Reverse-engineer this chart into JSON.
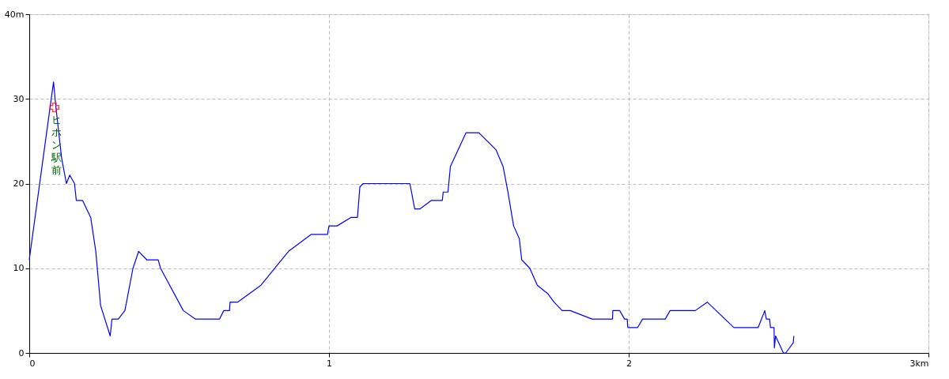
{
  "chart_data": {
    "type": "line",
    "x": [
      0,
      0.081,
      0.089,
      0.108,
      0.124,
      0.135,
      0.151,
      0.157,
      0.178,
      0.205,
      0.222,
      0.238,
      0.27,
      0.276,
      0.297,
      0.319,
      0.346,
      0.365,
      0.392,
      0.43,
      0.438,
      0.514,
      0.554,
      0.635,
      0.649,
      0.668,
      0.67,
      0.695,
      0.773,
      0.865,
      0.941,
      0.995,
      1.0,
      1.027,
      1.073,
      1.095,
      1.103,
      1.114,
      1.27,
      1.286,
      1.303,
      1.341,
      1.378,
      1.381,
      1.397,
      1.405,
      1.457,
      1.5,
      1.557,
      1.581,
      1.597,
      1.616,
      1.635,
      1.643,
      1.67,
      1.695,
      1.73,
      1.751,
      1.778,
      1.805,
      1.878,
      1.946,
      1.947,
      1.97,
      1.986,
      1.995,
      1.997,
      2.03,
      2.046,
      2.122,
      2.138,
      2.222,
      2.262,
      2.351,
      2.432,
      2.454,
      2.459,
      2.47,
      2.473,
      2.485,
      2.486,
      2.49,
      2.516,
      2.524,
      2.549,
      2.551
    ],
    "series": [
      {
        "color": "#0000ff",
        "values": [
          11,
          32,
          29,
          23,
          20,
          21,
          20,
          18,
          18,
          16,
          12,
          5.6,
          2,
          4,
          4,
          5,
          10,
          12,
          11,
          11,
          10,
          5,
          4,
          4,
          5,
          5,
          6,
          6,
          8,
          12,
          14,
          14,
          15,
          15,
          16,
          16,
          19.6,
          20,
          20,
          17,
          17,
          18,
          18,
          19,
          19,
          22,
          26,
          26,
          24,
          22,
          19,
          15,
          13.5,
          11,
          10,
          8,
          7,
          6,
          5,
          5,
          4,
          4,
          5,
          5,
          4,
          4,
          3,
          3,
          4,
          4,
          5,
          5,
          6,
          3,
          3,
          5,
          4,
          4,
          3,
          3,
          0.6,
          2,
          0,
          0,
          1.2,
          2
        ]
      }
    ],
    "xlim": [
      0,
      3
    ],
    "xticks": [
      0,
      1,
      2,
      {
        "value": 3,
        "label": "3km"
      }
    ],
    "ylim": [
      0,
      40
    ],
    "yticks": [
      0,
      10,
      20,
      30,
      {
        "value": 40,
        "label": "40m"
      }
    ],
    "grid": true,
    "marker": "none",
    "line_style": "solid",
    "annotations": [
      {
        "text": "ヒホン駅前",
        "x": 0.084,
        "y": 29
      }
    ]
  }
}
